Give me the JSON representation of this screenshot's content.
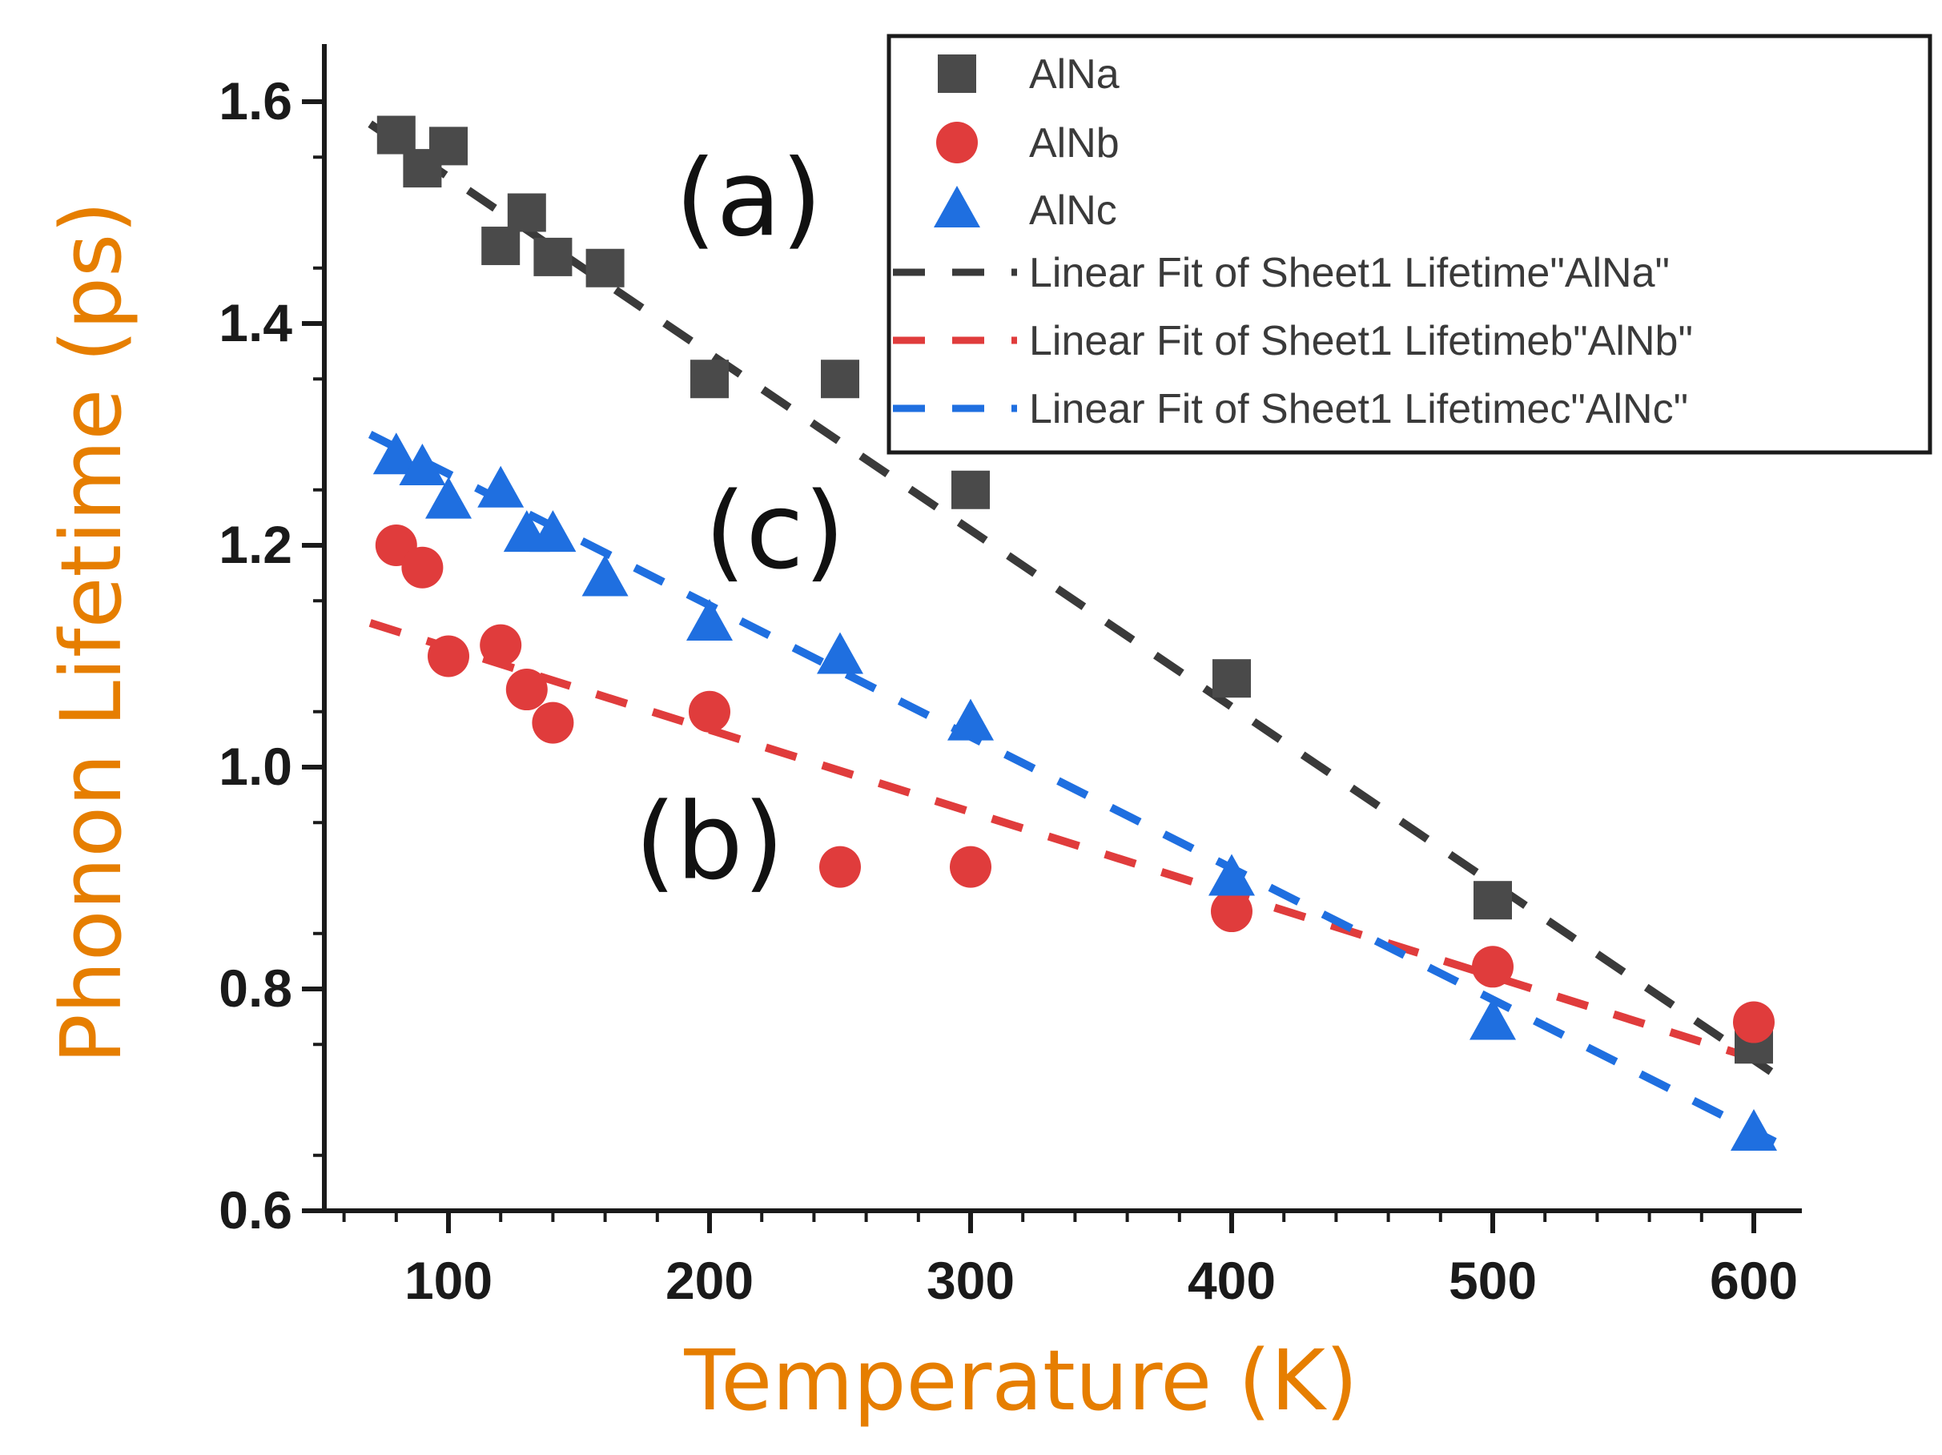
{
  "chart_data": {
    "type": "scatter",
    "title": "",
    "xlabel": "Temperature (K)",
    "ylabel": "Phonon Lifetime (ps)",
    "xlim": [
      50,
      620
    ],
    "ylim": [
      0.6,
      1.65
    ],
    "xticks": [
      100,
      200,
      300,
      400,
      500,
      600
    ],
    "yticks": [
      0.6,
      0.8,
      1.0,
      1.2,
      1.4,
      1.6
    ],
    "xtick_labels": [
      "100",
      "200",
      "300",
      "400",
      "500",
      "600"
    ],
    "ytick_labels": [
      "0.6",
      "0.8",
      "1.0",
      "1.2",
      "1.4",
      "1.6"
    ],
    "axis_title_color": "#e67e00",
    "grid": false,
    "legend_position": "top-right",
    "series": [
      {
        "name": "AlNa",
        "marker": "square",
        "color": "#4a4a4a",
        "x": [
          80,
          90,
          100,
          120,
          130,
          140,
          160,
          200,
          250,
          300,
          400,
          500,
          600
        ],
        "y": [
          1.57,
          1.54,
          1.56,
          1.47,
          1.5,
          1.46,
          1.45,
          1.35,
          1.35,
          1.25,
          1.08,
          0.88,
          0.75
        ]
      },
      {
        "name": "AlNb",
        "marker": "circle",
        "color": "#e03c3c",
        "x": [
          80,
          90,
          100,
          120,
          130,
          140,
          200,
          250,
          300,
          400,
          500,
          600
        ],
        "y": [
          1.2,
          1.18,
          1.1,
          1.11,
          1.07,
          1.04,
          1.05,
          0.91,
          0.91,
          0.87,
          0.82,
          0.77
        ]
      },
      {
        "name": "AlNc",
        "marker": "triangle",
        "color": "#1f6fe0",
        "x": [
          80,
          90,
          100,
          120,
          130,
          140,
          160,
          200,
          250,
          300,
          400,
          500,
          600
        ],
        "y": [
          1.28,
          1.27,
          1.24,
          1.25,
          1.21,
          1.21,
          1.17,
          1.13,
          1.1,
          1.04,
          0.9,
          0.77,
          0.67
        ]
      }
    ],
    "fits": [
      {
        "name": "Linear Fit of Sheet1 Lifetime\"AlNa\"",
        "color": "#3a3a3a",
        "x": [
          70,
          610
        ],
        "y": [
          1.58,
          0.72
        ]
      },
      {
        "name": "Linear Fit of Sheet1 Lifetimeb\"AlNb\"",
        "color": "#e03c3c",
        "x": [
          70,
          610
        ],
        "y": [
          1.13,
          0.73
        ]
      },
      {
        "name": "Linear Fit of Sheet1 Lifetimec\"AlNc\"",
        "color": "#1f6fe0",
        "x": [
          70,
          610
        ],
        "y": [
          1.3,
          0.66
        ]
      }
    ],
    "annotations": [
      {
        "text": "(a)",
        "x": 215,
        "y": 1.48
      },
      {
        "text": "(c)",
        "x": 225,
        "y": 1.18
      },
      {
        "text": "(b)",
        "x": 200,
        "y": 0.9
      }
    ]
  }
}
